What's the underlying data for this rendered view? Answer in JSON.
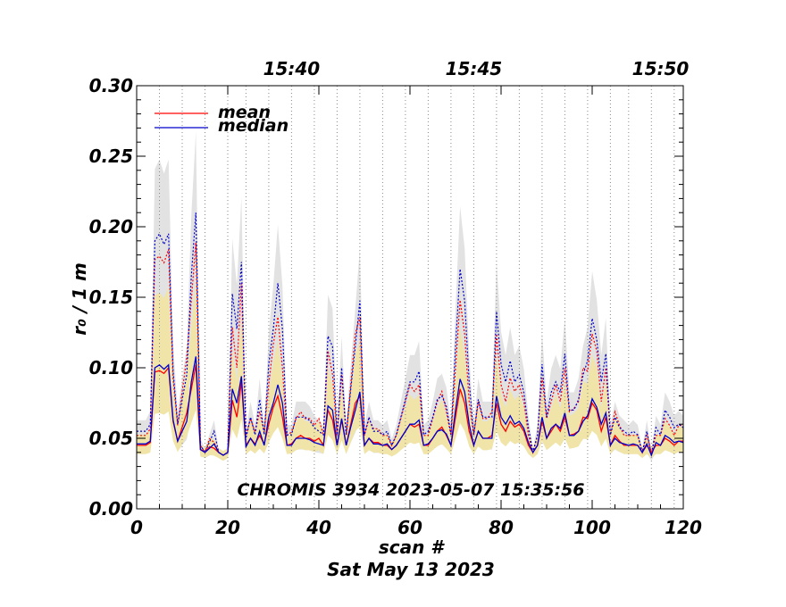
{
  "chart_data": {
    "type": "line",
    "title": "CHROMIS 3934 2023-05-07 15:35:56",
    "xlabel": "scan #",
    "xlabel2": "Sat May 13 2023",
    "ylabel": "r₀ / 1 m",
    "xlim": [
      0,
      120
    ],
    "ylim": [
      0.0,
      0.3
    ],
    "xticks": [
      "0",
      "20",
      "40",
      "60",
      "80",
      "100",
      "120"
    ],
    "yticks": [
      "0.00",
      "0.05",
      "0.10",
      "0.15",
      "0.20",
      "0.25",
      "0.30"
    ],
    "top_axis_ticks": [
      {
        "label": "15:40",
        "x": 34
      },
      {
        "label": "15:45",
        "x": 74
      },
      {
        "label": "15:50",
        "x": 115
      }
    ],
    "time_markers": [
      5,
      10,
      15,
      20,
      24,
      29,
      34,
      39,
      44,
      49,
      54,
      59,
      64,
      69,
      74,
      79,
      84,
      89,
      94,
      99,
      104,
      108,
      113,
      118
    ],
    "legend": {
      "placement": "top-left",
      "entries": [
        "mean",
        "median"
      ]
    },
    "colors": {
      "mean": "#ff0000",
      "median": "#0000cc",
      "band_mean": "#f0e4a8",
      "band_median": "#e2e2e2"
    },
    "x": [
      0,
      1,
      2,
      3,
      4,
      5,
      6,
      7,
      8,
      9,
      10,
      11,
      12,
      13,
      14,
      15,
      16,
      17,
      18,
      19,
      20,
      21,
      22,
      23,
      24,
      25,
      26,
      27,
      28,
      29,
      30,
      31,
      32,
      33,
      34,
      35,
      36,
      37,
      38,
      39,
      40,
      41,
      42,
      43,
      44,
      45,
      46,
      47,
      48,
      49,
      50,
      51,
      52,
      53,
      54,
      55,
      56,
      57,
      58,
      59,
      60,
      61,
      62,
      63,
      64,
      65,
      66,
      67,
      68,
      69,
      70,
      71,
      72,
      73,
      74,
      75,
      76,
      77,
      78,
      79,
      80,
      81,
      82,
      83,
      84,
      85,
      86,
      87,
      88,
      89,
      90,
      91,
      92,
      93,
      94,
      95,
      96,
      97,
      98,
      99,
      100,
      101,
      102,
      103,
      104,
      105,
      106,
      107,
      108,
      109,
      110,
      111,
      112,
      113,
      114,
      115,
      116,
      117,
      118,
      119,
      120
    ],
    "series": [
      {
        "name": "mean",
        "values": [
          0.045,
          0.045,
          0.045,
          0.047,
          0.097,
          0.098,
          0.096,
          0.1,
          0.062,
          0.048,
          0.058,
          0.068,
          0.085,
          0.102,
          0.042,
          0.04,
          0.044,
          0.043,
          0.04,
          0.038,
          0.04,
          0.077,
          0.065,
          0.09,
          0.045,
          0.05,
          0.046,
          0.052,
          0.046,
          0.06,
          0.072,
          0.08,
          0.065,
          0.045,
          0.046,
          0.05,
          0.052,
          0.05,
          0.05,
          0.048,
          0.05,
          0.045,
          0.07,
          0.063,
          0.045,
          0.063,
          0.045,
          0.06,
          0.075,
          0.08,
          0.045,
          0.05,
          0.047,
          0.047,
          0.045,
          0.045,
          0.042,
          0.045,
          0.05,
          0.055,
          0.06,
          0.058,
          0.06,
          0.045,
          0.045,
          0.05,
          0.055,
          0.058,
          0.052,
          0.045,
          0.065,
          0.085,
          0.075,
          0.055,
          0.045,
          0.055,
          0.05,
          0.05,
          0.052,
          0.075,
          0.06,
          0.055,
          0.062,
          0.058,
          0.06,
          0.055,
          0.045,
          0.04,
          0.045,
          0.062,
          0.05,
          0.055,
          0.06,
          0.055,
          0.065,
          0.052,
          0.053,
          0.055,
          0.065,
          0.064,
          0.075,
          0.07,
          0.055,
          0.065,
          0.045,
          0.052,
          0.048,
          0.045,
          0.045,
          0.045,
          0.045,
          0.04,
          0.045,
          0.04,
          0.045,
          0.045,
          0.05,
          0.048,
          0.045,
          0.048,
          0.048
        ]
      },
      {
        "name": "median",
        "values": [
          0.046,
          0.046,
          0.046,
          0.048,
          0.1,
          0.102,
          0.099,
          0.102,
          0.063,
          0.048,
          0.055,
          0.062,
          0.09,
          0.108,
          0.042,
          0.04,
          0.043,
          0.046,
          0.04,
          0.038,
          0.04,
          0.085,
          0.075,
          0.094,
          0.044,
          0.05,
          0.045,
          0.055,
          0.045,
          0.065,
          0.075,
          0.088,
          0.075,
          0.045,
          0.045,
          0.05,
          0.05,
          0.05,
          0.049,
          0.047,
          0.046,
          0.045,
          0.073,
          0.07,
          0.045,
          0.064,
          0.045,
          0.058,
          0.07,
          0.083,
          0.045,
          0.05,
          0.046,
          0.046,
          0.045,
          0.046,
          0.042,
          0.045,
          0.05,
          0.055,
          0.06,
          0.06,
          0.063,
          0.045,
          0.046,
          0.05,
          0.055,
          0.056,
          0.053,
          0.045,
          0.07,
          0.092,
          0.083,
          0.06,
          0.045,
          0.055,
          0.05,
          0.05,
          0.05,
          0.08,
          0.065,
          0.06,
          0.066,
          0.06,
          0.062,
          0.057,
          0.047,
          0.04,
          0.045,
          0.065,
          0.05,
          0.057,
          0.06,
          0.057,
          0.068,
          0.052,
          0.052,
          0.055,
          0.062,
          0.066,
          0.078,
          0.072,
          0.06,
          0.068,
          0.045,
          0.05,
          0.047,
          0.046,
          0.045,
          0.046,
          0.045,
          0.04,
          0.046,
          0.038,
          0.047,
          0.045,
          0.052,
          0.05,
          0.047,
          0.048,
          0.047
        ]
      }
    ]
  }
}
